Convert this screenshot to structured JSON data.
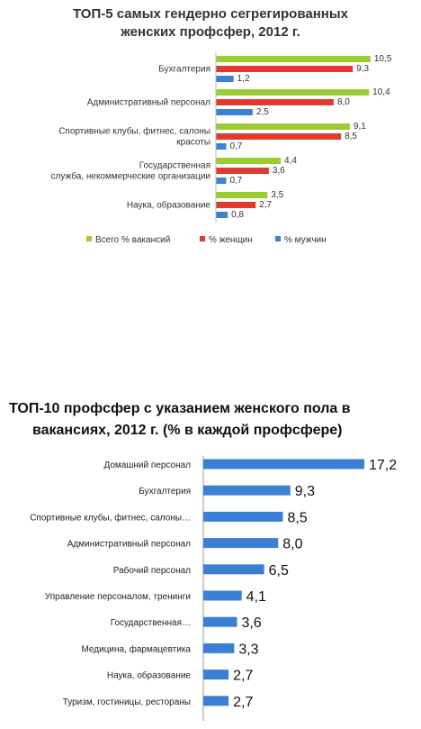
{
  "chart_data": [
    {
      "type": "bar",
      "orientation": "horizontal",
      "title": "ТОП-5 самых гендерно сегрегированных женских профсфер, 2012 г.",
      "title_lines": [
        "ТОП-5 самых гендерно сегрегированных",
        "женских профсфер, 2012 г."
      ],
      "categories": [
        [
          "Бухгалтерия"
        ],
        [
          "Административный персонал"
        ],
        [
          "Спортивные клубы, фитнес, салоны",
          "красоты"
        ],
        [
          "Государственная",
          "служба, некоммерческие организации"
        ],
        [
          "Наука, образование"
        ]
      ],
      "series": [
        {
          "name": "Всего % вакансий",
          "color": "#9acd32",
          "values": [
            10.5,
            10.4,
            9.1,
            4.4,
            3.5
          ],
          "labels": [
            "10,5",
            "10,4",
            "9,1",
            "4,4",
            "3,5"
          ]
        },
        {
          "name": "% женщин",
          "color": "#e23a2e",
          "values": [
            9.3,
            8.0,
            8.5,
            3.6,
            2.7
          ],
          "labels": [
            "9,3",
            "8,0",
            "8,5",
            "3,6",
            "2,7"
          ]
        },
        {
          "name": "% мужчин",
          "color": "#3b82d6",
          "values": [
            1.2,
            2.5,
            0.7,
            0.7,
            0.8
          ],
          "labels": [
            "1,2",
            "2,5",
            "0,7",
            "0,7",
            "0,8"
          ]
        }
      ],
      "xlim": [
        0,
        11
      ],
      "legend": "bottom",
      "grid": false
    },
    {
      "type": "bar",
      "orientation": "horizontal",
      "title": "ТОП-10 профсфер с указанием женского пола в вакансиях, 2012 г. (% в каждой профсфере)",
      "title_lines": [
        "ТОП-10 профсфер с указанием женского пола в",
        "вакансиях, 2012 г. (% в каждой профсфере)"
      ],
      "categories": [
        "Домашний персонал",
        "Бухгалтерия",
        "Спортивные клубы, фитнес, салоны…",
        "Административный персонал",
        "Рабочий персонал",
        "Управление персоналом, тренинги",
        "Государственная…",
        "Медицина, фармацевтика",
        "Наука, образование",
        "Туризм, гостиницы, рестораны"
      ],
      "series": [
        {
          "color": "#3b7fd4",
          "values": [
            17.2,
            9.3,
            8.5,
            8.0,
            6.5,
            4.1,
            3.6,
            3.3,
            2.7,
            2.7
          ],
          "labels": [
            "17,2",
            "9,3",
            "8,5",
            "8,0",
            "6,5",
            "4,1",
            "3,6",
            "3,3",
            "2,7",
            "2,7"
          ]
        }
      ],
      "xlim": [
        0,
        17.2
      ],
      "legend": "none",
      "grid": false
    }
  ]
}
